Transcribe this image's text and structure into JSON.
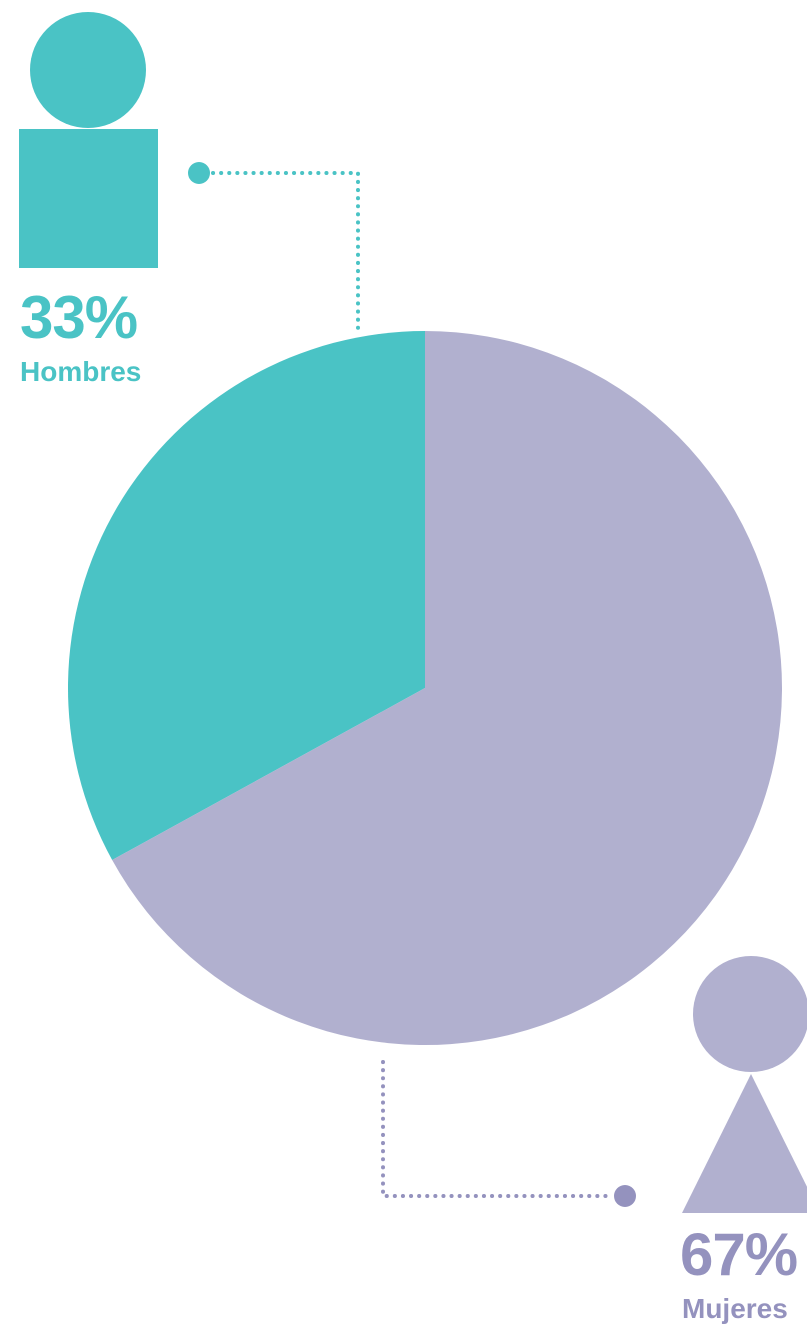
{
  "colors": {
    "men": "#4ac3c5",
    "women": "#b1b0cf",
    "women_text": "#9492be",
    "women_connector": "#9492be"
  },
  "icons": {
    "men": "male-person-icon",
    "women": "female-person-icon"
  },
  "chart_data": {
    "type": "pie",
    "categories": [
      "Hombres",
      "Mujeres"
    ],
    "values": [
      33,
      67
    ],
    "value_labels": [
      "33%",
      "67%"
    ],
    "title": "",
    "legend": "none"
  }
}
